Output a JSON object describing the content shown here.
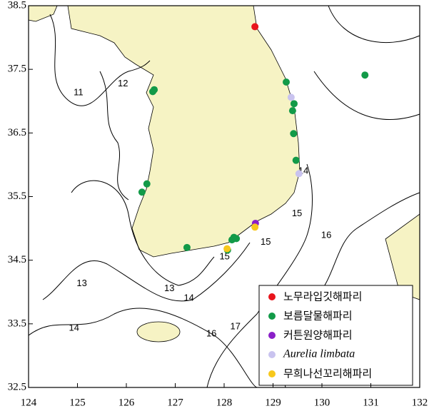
{
  "chart_data": {
    "type": "scatter",
    "xlim": [
      124,
      132
    ],
    "ylim": [
      32.5,
      38.5
    ],
    "xticks": [
      124,
      125,
      126,
      127,
      128,
      129,
      130,
      131,
      132
    ],
    "yticks": [
      32.5,
      33.5,
      34.5,
      35.5,
      36.5,
      37.5,
      38.5
    ],
    "legend": "lower right",
    "series": [
      {
        "name": "노무라입깃해파리",
        "color": "#e8141c",
        "x": [
          128.63
        ],
        "y": [
          38.17
        ]
      },
      {
        "name": "보름달물해파리",
        "color": "#129a48",
        "x": [
          129.27,
          130.88,
          129.43,
          129.4,
          129.42,
          129.47,
          126.54,
          126.57,
          126.42,
          126.32,
          127.24,
          128.2,
          128.16,
          128.25,
          128.07
        ],
        "y": [
          37.3,
          37.41,
          36.96,
          36.85,
          36.49,
          36.07,
          37.15,
          37.18,
          35.7,
          35.57,
          34.7,
          34.86,
          34.82,
          34.84,
          34.66
        ]
      },
      {
        "name": "커튼원양해파리",
        "color": "#8a1fc8",
        "x": [
          128.64
        ],
        "y": [
          35.08
        ]
      },
      {
        "name": "Aurelia limbata",
        "color": "#c9c3ef",
        "font_style": "italic",
        "x": [
          129.37,
          129.53
        ],
        "y": [
          37.06,
          35.86
        ]
      },
      {
        "name": "무희나선꼬리해파리",
        "color": "#f7c81c",
        "x": [
          128.63,
          128.06
        ],
        "y": [
          35.02,
          34.68
        ]
      }
    ],
    "contour_labels": [
      {
        "label": "11",
        "x": 125.02,
        "y": 37.13
      },
      {
        "label": "12",
        "x": 125.93,
        "y": 37.27
      },
      {
        "label": "13",
        "x": 126.88,
        "y": 34.05
      },
      {
        "label": "13",
        "x": 125.09,
        "y": 34.13
      },
      {
        "label": "14",
        "x": 127.28,
        "y": 33.9
      },
      {
        "label": "14",
        "x": 124.93,
        "y": 33.43
      },
      {
        "label": "14",
        "x": 129.62,
        "y": 35.9
      },
      {
        "label": "15",
        "x": 128.01,
        "y": 34.55
      },
      {
        "label": "15",
        "x": 128.85,
        "y": 34.78
      },
      {
        "label": "15",
        "x": 129.49,
        "y": 35.23
      },
      {
        "label": "16",
        "x": 130.09,
        "y": 34.89
      },
      {
        "label": "16",
        "x": 127.74,
        "y": 33.34
      },
      {
        "label": "17",
        "x": 128.23,
        "y": 33.45
      }
    ]
  }
}
